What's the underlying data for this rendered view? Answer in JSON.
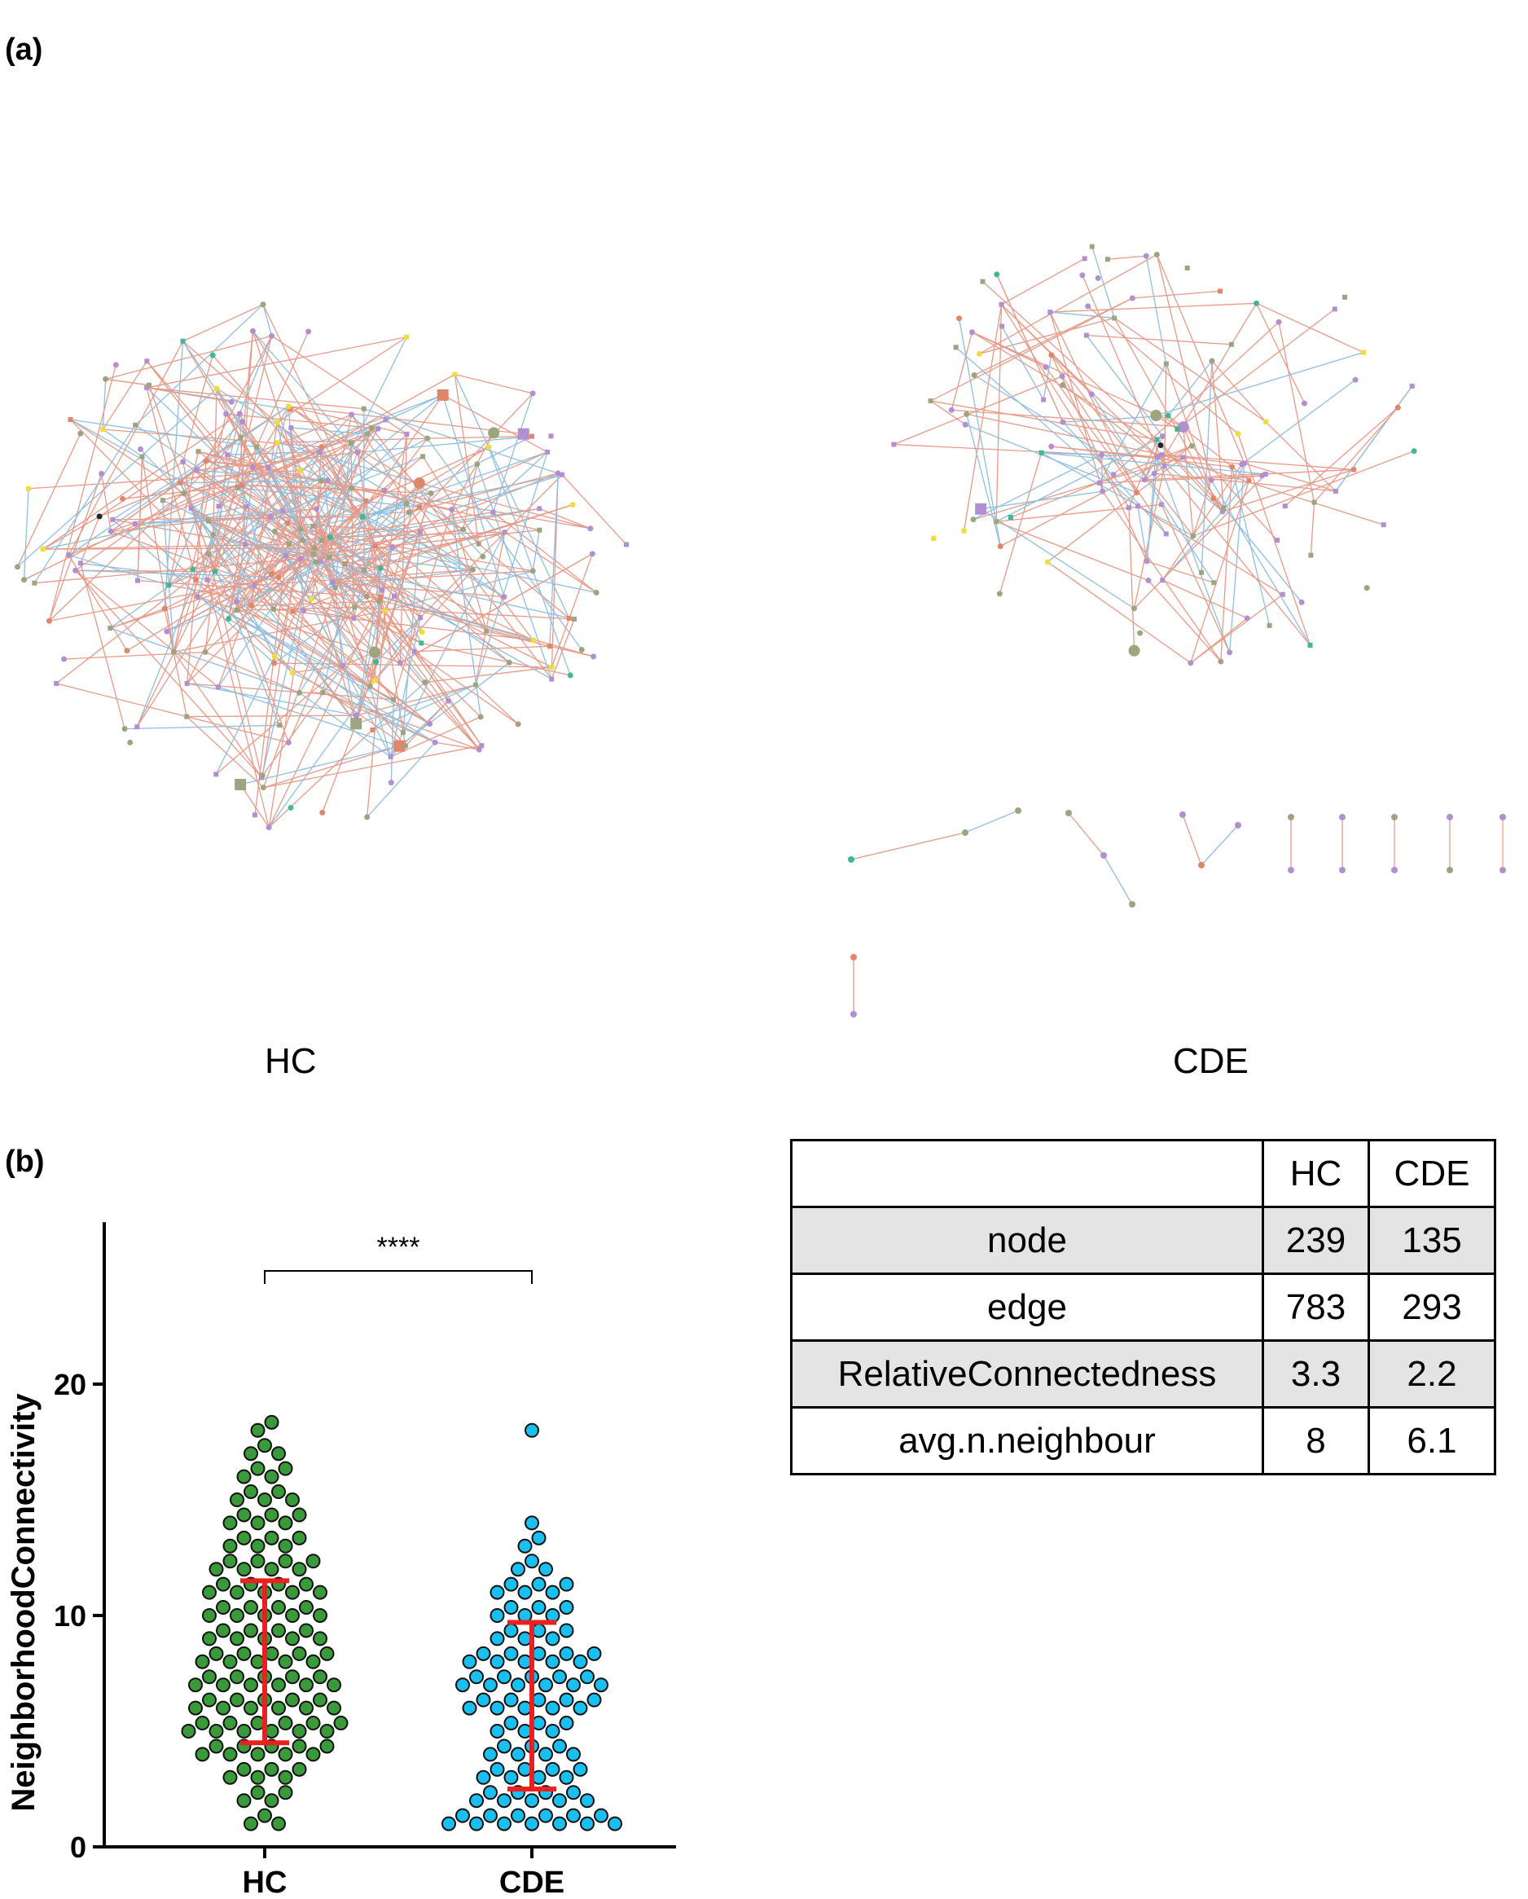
{
  "figure": {
    "panel_a_label": "(a)",
    "panel_b_label": "(b)",
    "network_labels": [
      "HC",
      "CDE"
    ]
  },
  "networks": {
    "node_colors": [
      "#b18fd1",
      "#9ca57f",
      "#e0876a",
      "#f0dc3a",
      "#3fb894",
      "#1e2630"
    ],
    "edge_colors": {
      "positive": "#e89a88",
      "negative": "#8fbfe0"
    }
  },
  "table": {
    "columns": [
      "",
      "HC",
      "CDE"
    ],
    "rows": [
      {
        "label": "node",
        "hc": "239",
        "cde": "135"
      },
      {
        "label": "edge",
        "hc": "783",
        "cde": "293"
      },
      {
        "label": "RelativeConnectedness",
        "hc": "3.3",
        "cde": "2.2"
      },
      {
        "label": "avg.n.neighbour",
        "hc": "8",
        "cde": "6.1"
      }
    ]
  },
  "chart_data": {
    "type": "scatter",
    "subtype": "dot-plot with mean ± SD",
    "ylabel": "NeighborhoodConnectivity",
    "categories": [
      "HC",
      "CDE"
    ],
    "ylim": [
      0,
      27
    ],
    "yticks": [
      "0",
      "10",
      "20"
    ],
    "significance": "****",
    "series": [
      {
        "name": "HC",
        "color": "#3a9a3a",
        "n": 239,
        "mean": 8.0,
        "error_bar": [
          4.5,
          11.5
        ],
        "values_summary": {
          "min": 1.0,
          "max": 17.2
        }
      },
      {
        "name": "CDE",
        "color": "#19bfef",
        "n": 135,
        "mean": 6.1,
        "error_bar": [
          2.5,
          9.7
        ],
        "values_summary": {
          "min": 1.0,
          "max": 17.0
        }
      }
    ],
    "errorbar_color": "#e8201f"
  }
}
